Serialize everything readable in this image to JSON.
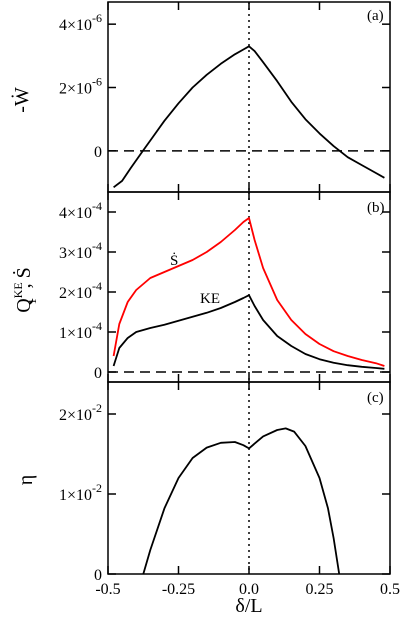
{
  "chart_data": [
    {
      "panel": "(a)",
      "type": "line",
      "ylabel": "-Ẇ",
      "ylim": [
        -1.3e-06,
        4.7e-06
      ],
      "yticks": [
        {
          "value": 0,
          "label": "0"
        },
        {
          "value": 2e-06,
          "label": "2×10",
          "exp": "-6"
        },
        {
          "value": 4e-06,
          "label": "4×10",
          "exp": "-6"
        }
      ],
      "series": [
        {
          "color": "#000000",
          "x": [
            -0.48,
            -0.45,
            -0.42,
            -0.38,
            -0.34,
            -0.3,
            -0.25,
            -0.2,
            -0.15,
            -0.1,
            -0.05,
            -0.02,
            0.0,
            0.02,
            0.05,
            0.1,
            0.15,
            0.2,
            0.25,
            0.3,
            0.35,
            0.4,
            0.45,
            0.48
          ],
          "y": [
            -1.15e-06,
            -9.5e-07,
            -5.5e-07,
            -5e-08,
            4.5e-07,
            9.5e-07,
            1.5e-06,
            2e-06,
            2.4e-06,
            2.75e-06,
            3.05e-06,
            3.2e-06,
            3.3e-06,
            3.15e-06,
            2.8e-06,
            2.2e-06,
            1.55e-06,
            1e-06,
            5.5e-07,
            1.5e-07,
            -2e-07,
            -4.5e-07,
            -7e-07,
            -8.5e-07
          ]
        }
      ]
    },
    {
      "panel": "(b)",
      "type": "line",
      "ylabel_main": "Q",
      "ylabel_sub": "1",
      "ylabel_sup": "KE",
      "ylabel_tail": ", Ṡ",
      "ylim": [
        -2.5e-05,
        0.00045
      ],
      "yticks": [
        {
          "value": 0,
          "label": "0"
        },
        {
          "value": 0.0001,
          "label": "1×10",
          "exp": "-4"
        },
        {
          "value": 0.0002,
          "label": "2×10",
          "exp": "-4"
        },
        {
          "value": 0.0003,
          "label": "3×10",
          "exp": "-4"
        },
        {
          "value": 0.0004,
          "label": "4×10",
          "exp": "-4"
        }
      ],
      "series": [
        {
          "name": "Ṡ",
          "color": "#ff0000",
          "x": [
            -0.48,
            -0.46,
            -0.43,
            -0.4,
            -0.35,
            -0.3,
            -0.25,
            -0.2,
            -0.15,
            -0.1,
            -0.05,
            -0.02,
            0.0,
            0.02,
            0.05,
            0.1,
            0.15,
            0.2,
            0.25,
            0.3,
            0.35,
            0.4,
            0.45,
            0.48
          ],
          "y": [
            4e-05,
            0.00012,
            0.000175,
            0.000205,
            0.000235,
            0.00025,
            0.000265,
            0.00028,
            0.0003,
            0.000325,
            0.000355,
            0.000375,
            0.000385,
            0.00033,
            0.00026,
            0.00018,
            0.00013,
            9.5e-05,
            7e-05,
            5.2e-05,
            4e-05,
            3e-05,
            2.2e-05,
            1.5e-05
          ]
        },
        {
          "name": "KE",
          "color": "#000000",
          "x": [
            -0.48,
            -0.46,
            -0.43,
            -0.4,
            -0.35,
            -0.3,
            -0.25,
            -0.2,
            -0.15,
            -0.1,
            -0.05,
            -0.02,
            0.0,
            0.02,
            0.05,
            0.1,
            0.15,
            0.2,
            0.25,
            0.3,
            0.35,
            0.4,
            0.45,
            0.48
          ],
          "y": [
            1.5e-05,
            6e-05,
            8.5e-05,
            0.0001,
            0.00011,
            0.000118,
            0.000128,
            0.000138,
            0.000148,
            0.00016,
            0.000175,
            0.000185,
            0.000192,
            0.000165,
            0.00013,
            9e-05,
            6.5e-05,
            4.5e-05,
            3.2e-05,
            2.3e-05,
            1.7e-05,
            1.3e-05,
            1e-05,
            8e-06
          ]
        }
      ]
    },
    {
      "panel": "(c)",
      "type": "line",
      "ylabel": "η",
      "xlabel": "δ/L",
      "xlim": [
        -0.5,
        0.5
      ],
      "ylim": [
        0,
        0.024
      ],
      "xticks": [
        {
          "value": -0.5,
          "label": "-0.5"
        },
        {
          "value": -0.25,
          "label": "-0.25"
        },
        {
          "value": 0.0,
          "label": "0.0"
        },
        {
          "value": 0.25,
          "label": "0.25"
        },
        {
          "value": 0.5,
          "label": "0.5"
        }
      ],
      "yticks": [
        {
          "value": 0,
          "label": "0"
        },
        {
          "value": 0.01,
          "label": "1×10",
          "exp": "-2"
        },
        {
          "value": 0.02,
          "label": "2×10",
          "exp": "-2"
        }
      ],
      "series": [
        {
          "color": "#000000",
          "x": [
            -0.375,
            -0.35,
            -0.3,
            -0.25,
            -0.2,
            -0.15,
            -0.1,
            -0.05,
            -0.02,
            0.0,
            0.02,
            0.05,
            0.1,
            0.13,
            0.16,
            0.2,
            0.25,
            0.28,
            0.3,
            0.32
          ],
          "y": [
            0.0,
            0.003,
            0.0082,
            0.012,
            0.0145,
            0.0158,
            0.0164,
            0.0165,
            0.0161,
            0.0157,
            0.0163,
            0.0172,
            0.018,
            0.0182,
            0.0178,
            0.016,
            0.012,
            0.0082,
            0.0045,
            0.0
          ]
        }
      ]
    }
  ],
  "curve_labels": {
    "s_dot": "Ṡ",
    "ke": "KE"
  }
}
